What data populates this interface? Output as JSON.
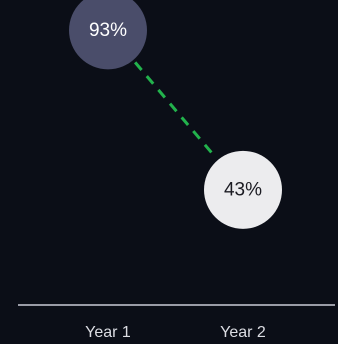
{
  "chart_data": {
    "type": "scatter",
    "categories": [
      "Year 1",
      "Year 2"
    ],
    "values": [
      93,
      43
    ],
    "value_labels": [
      "93%",
      "43%"
    ],
    "unit": "%",
    "ylim": [
      0,
      100
    ],
    "legend": "none",
    "grid": false,
    "colors": {
      "background": "#0b0e17",
      "baseline": "#c9ccd6",
      "connector": "#22b24c",
      "point_year1": "#4a4d6a",
      "point_year2": "#ececee",
      "label_year1": "#ffffff",
      "label_year2": "#1b1b22"
    }
  }
}
